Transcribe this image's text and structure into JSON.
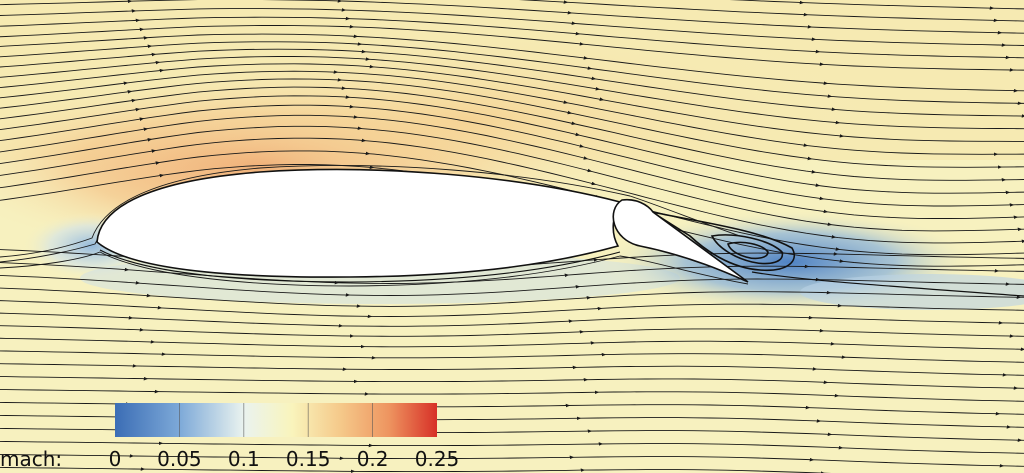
{
  "colorbar": {
    "label": "mach:",
    "ticks": [
      "0",
      "0.05",
      "0.1",
      "0.15",
      "0.2",
      "0.25"
    ],
    "range": [
      0,
      0.25
    ],
    "colors": [
      "#3b6db5",
      "#7da9d8",
      "#dfeef2",
      "#f9f6c2",
      "#f5c98a",
      "#ee9560",
      "#d73027"
    ]
  },
  "field": {
    "freestream_color": "#f7f1bf",
    "suction_color": "#f0a970",
    "wake_color": "#6c98cf",
    "stagnation_color": "#bcd5e8"
  },
  "streamlines": {
    "color": "#1a1a1a"
  }
}
